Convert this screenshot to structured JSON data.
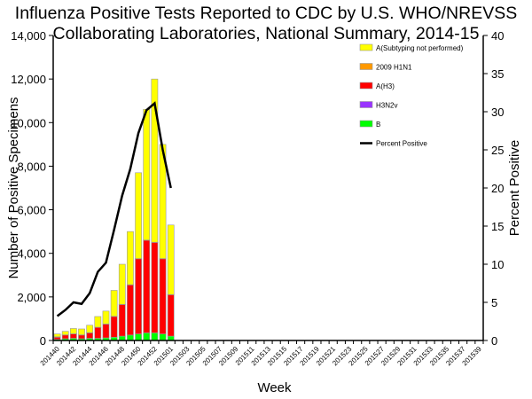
{
  "chart_data": {
    "type": "bar",
    "title": [
      "Influenza Positive Tests Reported to CDC by U.S. WHO/NREVSS",
      "Collaborating Laboratories, National Summary, 2014-15"
    ],
    "xlabel": "Week",
    "ylabel": "Number of Positive Specimens",
    "y2label": "Percent Positive",
    "ylim": [
      0,
      14000
    ],
    "y2lim": [
      0,
      40
    ],
    "yticks": [
      "0",
      "2,000",
      "4,000",
      "6,000",
      "8,000",
      "10,000",
      "12,000",
      "14,000"
    ],
    "y2ticks": [
      "0",
      "5",
      "10",
      "15",
      "20",
      "25",
      "30",
      "35",
      "40"
    ],
    "weeks": [
      "201440",
      "201441",
      "201442",
      "201443",
      "201444",
      "201445",
      "201446",
      "201447",
      "201448",
      "201449",
      "201450",
      "201451",
      "201452",
      "201453",
      "201501",
      "201502",
      "201503",
      "201504",
      "201505",
      "201506",
      "201507",
      "201508",
      "201509",
      "201510",
      "201511",
      "201512",
      "201513",
      "201514",
      "201515",
      "201516",
      "201517",
      "201518",
      "201519",
      "201520",
      "201521",
      "201522",
      "201523",
      "201524",
      "201525",
      "201526",
      "201527",
      "201528",
      "201529",
      "201530",
      "201531",
      "201532",
      "201533",
      "201534",
      "201535",
      "201536",
      "201537",
      "201538",
      "201539"
    ],
    "tick_labels": [
      "201440",
      "201442",
      "201444",
      "201446",
      "201448",
      "201450",
      "201452",
      "201501",
      "201503",
      "201505",
      "201507",
      "201509",
      "201511",
      "201513",
      "201515",
      "201517",
      "201519",
      "201521",
      "201523",
      "201525",
      "201527",
      "201529",
      "201531",
      "201533",
      "201535",
      "201537",
      "201539"
    ],
    "stacked": true,
    "series": [
      {
        "name": "B",
        "color": "#00FF00",
        "values": [
          50,
          80,
          100,
          80,
          100,
          100,
          120,
          150,
          200,
          250,
          300,
          350,
          350,
          300,
          200
        ]
      },
      {
        "name": "H3N2v",
        "color": "#9933FF",
        "values": [
          0,
          0,
          0,
          0,
          0,
          0,
          0,
          0,
          0,
          0,
          0,
          0,
          0,
          0,
          0
        ]
      },
      {
        "name": "A(H3)",
        "color": "#FF0000",
        "values": [
          100,
          170,
          200,
          170,
          250,
          500,
          630,
          950,
          1450,
          2300,
          3450,
          4250,
          4150,
          3450,
          1900
        ]
      },
      {
        "name": "2009 H1N1",
        "color": "#FF9900",
        "values": [
          20,
          10,
          10,
          10,
          10,
          10,
          10,
          10,
          10,
          10,
          10,
          10,
          10,
          10,
          10
        ]
      },
      {
        "name": "A(Subtyping not performed)",
        "color": "#FFFF00",
        "values": [
          130,
          160,
          240,
          270,
          340,
          490,
          590,
          1190,
          1840,
          2440,
          3940,
          6000,
          7490,
          5240,
          3190
        ]
      }
    ],
    "line": {
      "name": "Percent Positive",
      "color": "#000000",
      "axis": "right",
      "values": [
        3.2,
        4.0,
        5.0,
        4.8,
        6.2,
        9.0,
        10.2,
        14.5,
        19.0,
        22.5,
        27.2,
        30.2,
        31.1,
        25.0,
        20.0
      ]
    },
    "legend_position": "top-right",
    "legend_order": [
      "A(Subtyping not performed)",
      "2009 H1N1",
      "A(H3)",
      "H3N2v",
      "B",
      "Percent Positive"
    ],
    "grid": false
  }
}
